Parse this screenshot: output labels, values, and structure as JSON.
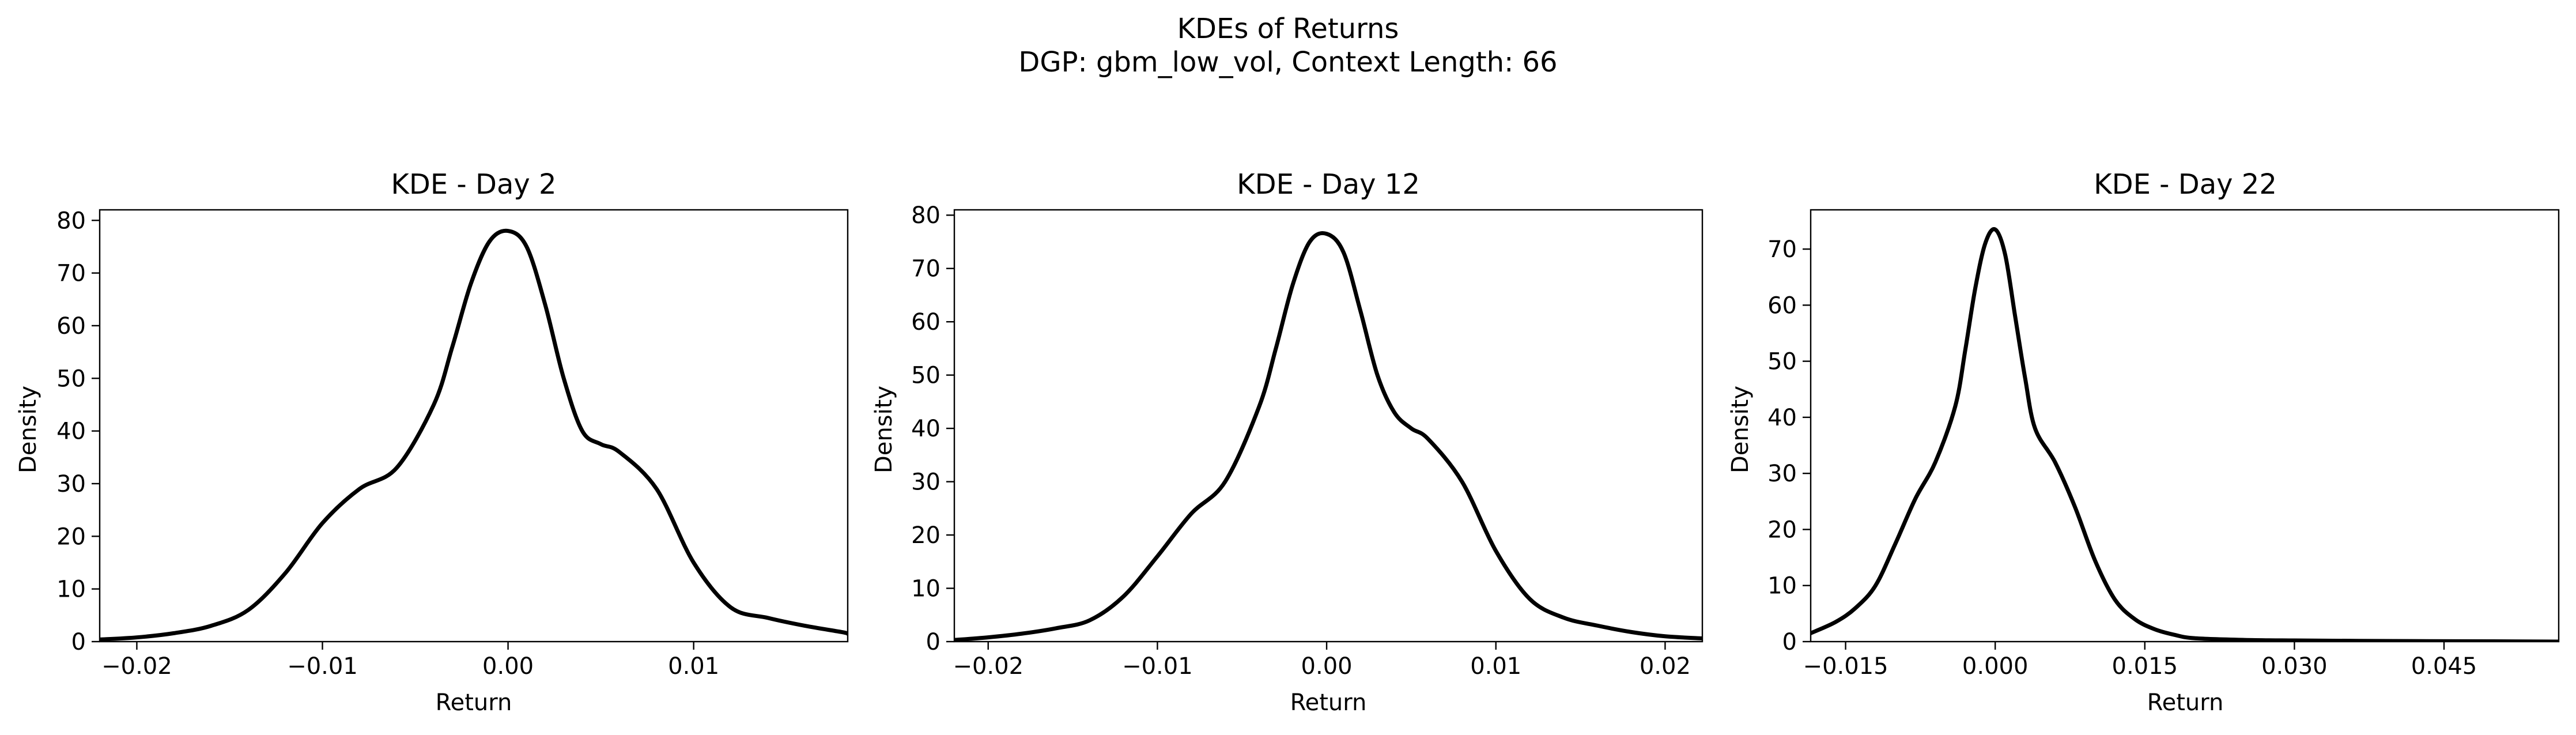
{
  "figure": {
    "title_line1": "KDEs of Returns",
    "title_line2": "DGP: gbm_low_vol, Context Length: 66"
  },
  "chart_data": [
    {
      "type": "line",
      "title": "KDE - Day 2",
      "xlabel": "Return",
      "ylabel": "Density",
      "xlim": [
        -0.022,
        0.0183
      ],
      "ylim": [
        0,
        82
      ],
      "xticks": [
        -0.02,
        -0.01,
        0.0,
        0.01
      ],
      "xtick_labels": [
        "−0.02",
        "−0.01",
        "0.00",
        "0.01"
      ],
      "yticks": [
        0,
        10,
        20,
        30,
        40,
        50,
        60,
        70,
        80
      ],
      "ytick_labels": [
        "0",
        "10",
        "20",
        "30",
        "40",
        "50",
        "60",
        "70",
        "80"
      ],
      "grid": false,
      "legend": false,
      "series": [
        {
          "color": "#000000",
          "x": [
            -0.022,
            -0.02,
            -0.018,
            -0.016,
            -0.014,
            -0.012,
            -0.01,
            -0.008,
            -0.006,
            -0.004,
            -0.003,
            -0.002,
            -0.001,
            0.0,
            0.001,
            0.002,
            0.003,
            0.004,
            0.005,
            0.006,
            0.008,
            0.01,
            0.012,
            0.014,
            0.016,
            0.018,
            0.0183
          ],
          "y": [
            0.4,
            0.8,
            1.6,
            3.0,
            6.0,
            13.0,
            22.5,
            29.0,
            33.0,
            45.0,
            56.0,
            68.0,
            76.0,
            78.0,
            75.0,
            64.0,
            50.0,
            40.0,
            37.5,
            36.0,
            29.0,
            15.0,
            6.5,
            4.5,
            3.0,
            1.8,
            1.5
          ]
        }
      ]
    },
    {
      "type": "line",
      "title": "KDE - Day 12",
      "xlabel": "Return",
      "ylabel": "Density",
      "xlim": [
        -0.022,
        0.0222
      ],
      "ylim": [
        0,
        81
      ],
      "xticks": [
        -0.02,
        -0.01,
        0.0,
        0.01,
        0.02
      ],
      "xtick_labels": [
        "−0.02",
        "−0.01",
        "0.00",
        "0.01",
        "0.02"
      ],
      "yticks": [
        0,
        10,
        20,
        30,
        40,
        50,
        60,
        70,
        80
      ],
      "ytick_labels": [
        "0",
        "10",
        "20",
        "30",
        "40",
        "50",
        "60",
        "70",
        "80"
      ],
      "grid": false,
      "legend": false,
      "series": [
        {
          "color": "#000000",
          "x": [
            -0.022,
            -0.02,
            -0.018,
            -0.016,
            -0.014,
            -0.012,
            -0.01,
            -0.008,
            -0.006,
            -0.004,
            -0.003,
            -0.002,
            -0.001,
            0.0,
            0.001,
            0.002,
            0.003,
            0.004,
            0.005,
            0.006,
            0.008,
            0.01,
            0.012,
            0.014,
            0.016,
            0.018,
            0.02,
            0.0222
          ],
          "y": [
            0.3,
            0.8,
            1.5,
            2.5,
            4.0,
            8.5,
            16.0,
            24.0,
            30.0,
            44.0,
            55.0,
            67.0,
            75.0,
            76.5,
            73.0,
            62.0,
            50.0,
            43.0,
            40.0,
            38.0,
            30.0,
            17.0,
            8.0,
            4.5,
            3.0,
            1.8,
            1.0,
            0.6
          ]
        }
      ]
    },
    {
      "type": "line",
      "title": "KDE - Day 22",
      "xlabel": "Return",
      "ylabel": "Density",
      "xlim": [
        -0.0185,
        0.0565
      ],
      "ylim": [
        0,
        77
      ],
      "xticks": [
        -0.015,
        0.0,
        0.015,
        0.03,
        0.045
      ],
      "xtick_labels": [
        "−0.015",
        "0.000",
        "0.015",
        "0.030",
        "0.045"
      ],
      "yticks": [
        0,
        10,
        20,
        30,
        40,
        50,
        60,
        70
      ],
      "ytick_labels": [
        "0",
        "10",
        "20",
        "30",
        "40",
        "50",
        "60",
        "70"
      ],
      "grid": false,
      "legend": false,
      "series": [
        {
          "color": "#000000",
          "x": [
            -0.0185,
            -0.016,
            -0.014,
            -0.012,
            -0.01,
            -0.008,
            -0.006,
            -0.004,
            -0.003,
            -0.002,
            -0.001,
            0.0,
            0.001,
            0.002,
            0.003,
            0.004,
            0.006,
            0.008,
            0.01,
            0.012,
            0.014,
            0.016,
            0.018,
            0.02,
            0.025,
            0.03,
            0.04,
            0.05,
            0.0565
          ],
          "y": [
            1.5,
            3.5,
            6.0,
            10.0,
            17.5,
            25.5,
            32.0,
            42.0,
            52.0,
            63.0,
            71.0,
            73.5,
            69.0,
            58.0,
            47.0,
            38.0,
            32.0,
            24.0,
            14.5,
            7.5,
            4.0,
            2.2,
            1.2,
            0.6,
            0.3,
            0.2,
            0.1,
            0.05,
            0.0
          ]
        }
      ]
    }
  ]
}
